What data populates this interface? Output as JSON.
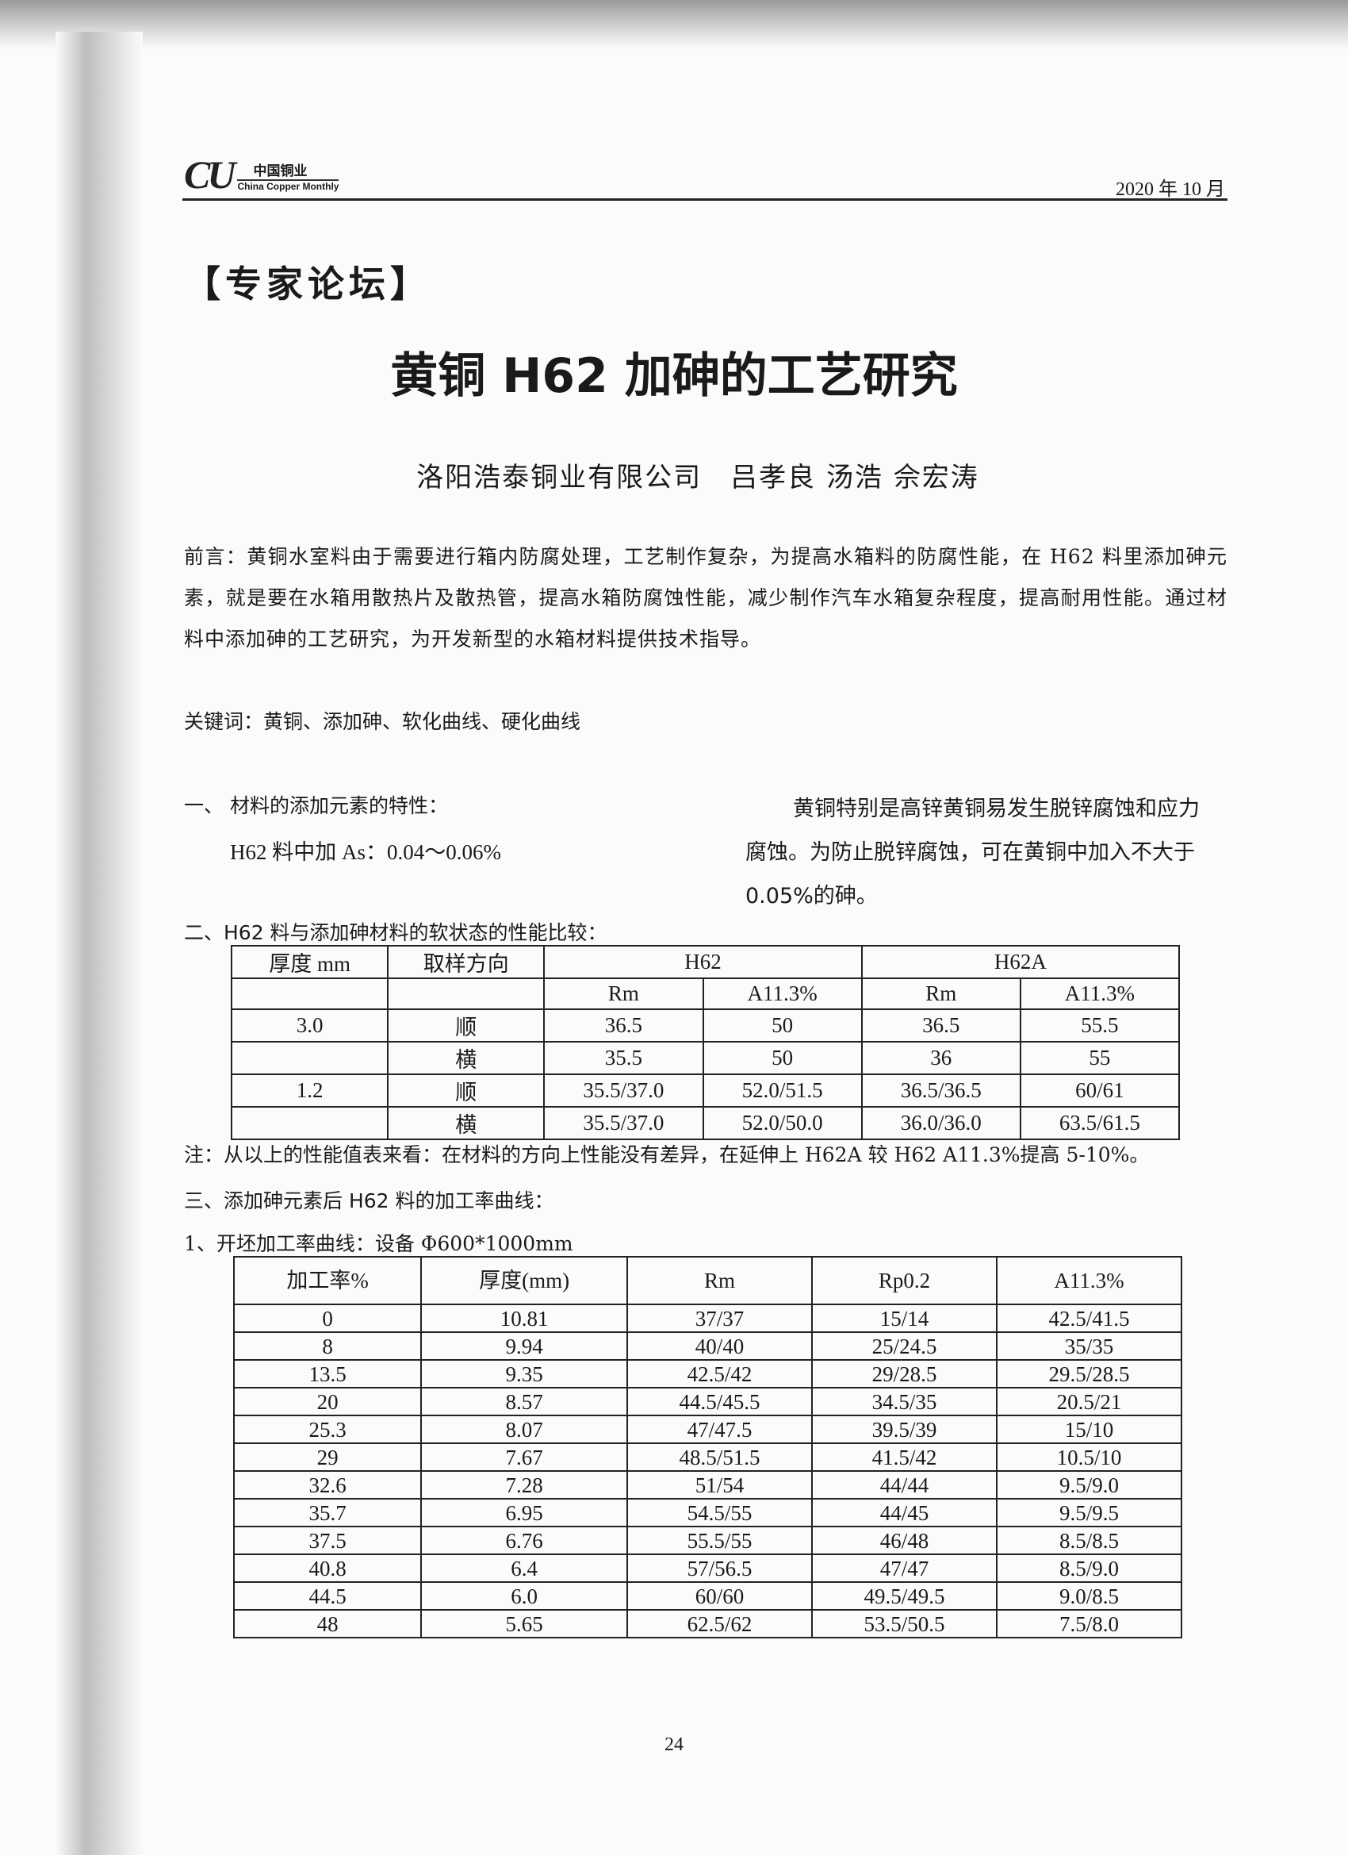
{
  "header": {
    "logo_mark": "CU",
    "logo_cn": "中国铜业",
    "logo_en": "China Copper Monthly",
    "date": "2020 年 10 月"
  },
  "column": "【专家论坛】",
  "title": "黄铜 H62 加砷的工艺研究",
  "authors": "洛阳浩泰铜业有限公司　吕孝良 汤浩 佘宏涛",
  "intro": "前言：黄铜水室料由于需要进行箱内防腐处理，工艺制作复杂，为提高水箱料的防腐性能，在 H62 料里添加砷元素，就是要在水箱用散热片及散热管，提高水箱防腐蚀性能，减少制作汽车水箱复杂程度，提高耐用性能。通过材料中添加砷的工艺研究，为开发新型的水箱材料提供技术指导。",
  "keywords": "关键词：黄铜、添加砷、软化曲线、硬化曲线",
  "section1": {
    "heading": "一、 材料的添加元素的特性：",
    "text": "H62 料中加 As：0.04～0.06%",
    "right_text": "黄铜特别是高锌黄铜易发生脱锌腐蚀和应力腐蚀。为防止脱锌腐蚀，可在黄铜中加入不大于 0.05%的砷。"
  },
  "section2": {
    "heading": "二、H62 料与添加砷材料的软状态的性能比较：",
    "table": {
      "col_thickness": "厚度 mm",
      "col_direction": "取样方向",
      "group1": "H62",
      "group2": "H62A",
      "sub": [
        "Rm",
        "A11.3%",
        "Rm",
        "A11.3%"
      ],
      "rows": [
        [
          "3.0",
          "顺",
          "36.5",
          "50",
          "36.5",
          "55.5"
        ],
        [
          "",
          "横",
          "35.5",
          "50",
          "36",
          "55"
        ],
        [
          "1.2",
          "顺",
          "35.5/37.0",
          "52.0/51.5",
          "36.5/36.5",
          "60/61"
        ],
        [
          "",
          "横",
          "35.5/37.0",
          "52.0/50.0",
          "36.0/36.0",
          "63.5/61.5"
        ]
      ]
    },
    "note": "注：从以上的性能值表来看：在材料的方向上性能没有差异，在延伸上 H62A 较 H62 A11.3%提高 5-10%。"
  },
  "section3": {
    "heading": "三、添加砷元素后 H62 料的加工率曲线：",
    "sub1": "1、开坯加工率曲线：设备 Φ600*1000mm",
    "table": {
      "headers": [
        "加工率%",
        "厚度(mm)",
        "Rm",
        "Rp0.2",
        "A11.3%"
      ],
      "rows": [
        [
          "0",
          "10.81",
          "37/37",
          "15/14",
          "42.5/41.5"
        ],
        [
          "8",
          "9.94",
          "40/40",
          "25/24.5",
          "35/35"
        ],
        [
          "13.5",
          "9.35",
          "42.5/42",
          "29/28.5",
          "29.5/28.5"
        ],
        [
          "20",
          "8.57",
          "44.5/45.5",
          "34.5/35",
          "20.5/21"
        ],
        [
          "25.3",
          "8.07",
          "47/47.5",
          "39.5/39",
          "15/10"
        ],
        [
          "29",
          "7.67",
          "48.5/51.5",
          "41.5/42",
          "10.5/10"
        ],
        [
          "32.6",
          "7.28",
          "51/54",
          "44/44",
          "9.5/9.0"
        ],
        [
          "35.7",
          "6.95",
          "54.5/55",
          "44/45",
          "9.5/9.5"
        ],
        [
          "37.5",
          "6.76",
          "55.5/55",
          "46/48",
          "8.5/8.5"
        ],
        [
          "40.8",
          "6.4",
          "57/56.5",
          "47/47",
          "8.5/9.0"
        ],
        [
          "44.5",
          "6.0",
          "60/60",
          "49.5/49.5",
          "9.0/8.5"
        ],
        [
          "48",
          "5.65",
          "62.5/62",
          "53.5/50.5",
          "7.5/8.0"
        ]
      ]
    }
  },
  "page_number": "24"
}
